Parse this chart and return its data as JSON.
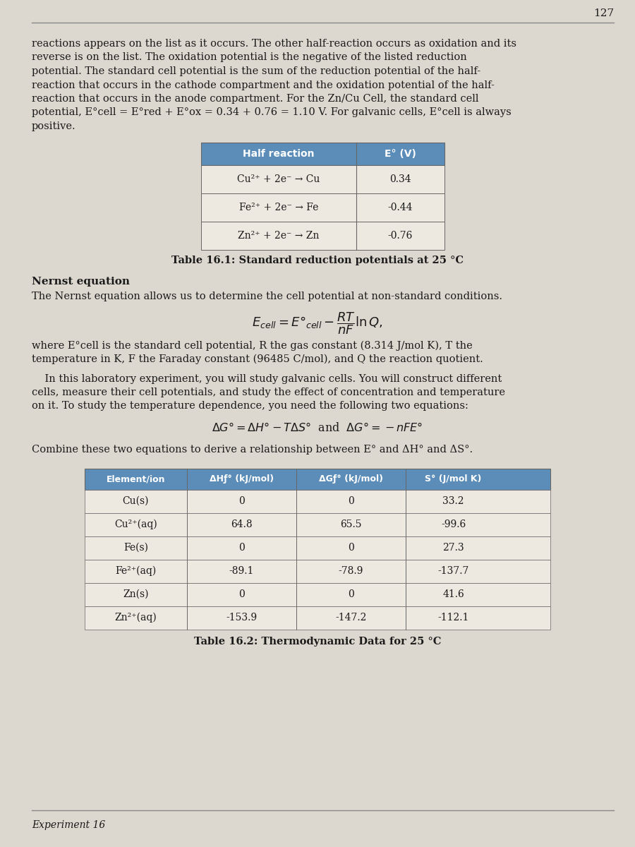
{
  "page_number": "127",
  "page_bg": "#ddd8cf",
  "para1_lines": [
    "reactions appears on the list as it occurs. The other half-reaction occurs as oxidation and its",
    "reverse is on the list. The oxidation potential is the negative of the listed reduction",
    "potential. The standard cell potential is the sum of the reduction potential of the half-",
    "reaction that occurs in the cathode compartment and the oxidation potential of the half-",
    "reaction that occurs in the anode compartment. For the Zn/Cu Cell, the standard cell",
    "potential, E°cell = E°red + E°ox = 0.34 + 0.76 = 1.10 V. For galvanic cells, E°cell is always",
    "positive."
  ],
  "table1_title": "Table 16.1: Standard reduction potentials at 25 °C",
  "table1_headers": [
    "Half reaction",
    "E° (V)"
  ],
  "table1_rows": [
    [
      "Cu²⁺ + 2e⁻ → Cu",
      "0.34"
    ],
    [
      "Fe²⁺ + 2e⁻ → Fe",
      "-0.44"
    ],
    [
      "Zn²⁺ + 2e⁻ → Zn",
      "-0.76"
    ]
  ],
  "nernst_heading": "Nernst equation",
  "nernst_intro": "The Nernst equation allows us to determine the cell potential at non-standard conditions.",
  "nernst_desc_lines": [
    "where E°cell is the standard cell potential, R the gas constant (8.314 J/mol K), T the",
    "temperature in K, F the Faraday constant (96485 C/mol), and Q the reaction quotient."
  ],
  "lab_lines": [
    "    In this laboratory experiment, you will study galvanic cells. You will construct different",
    "cells, measure their cell potentials, and study the effect of concentration and temperature",
    "on it. To study the temperature dependence, you need the following two equations:"
  ],
  "combine_text": "Combine these two equations to derive a relationship between E° and ΔH° and ΔS°.",
  "table2_title": "Table 16.2: Thermodynamic Data for 25 °C",
  "table2_headers": [
    "Element/ion",
    "ΔHƒ° (kJ/mol)",
    "ΔGƒ° (kJ/mol)",
    "S° (J/mol K)"
  ],
  "table2_rows": [
    [
      "Cu(s)",
      "0",
      "0",
      "33.2"
    ],
    [
      "Cu²⁺(aq)",
      "64.8",
      "65.5",
      "-99.6"
    ],
    [
      "Fe(s)",
      "0",
      "0",
      "27.3"
    ],
    [
      "Fe²⁺(aq)",
      "-89.1",
      "-78.9",
      "-137.7"
    ],
    [
      "Zn(s)",
      "0",
      "0",
      "41.6"
    ],
    [
      "Zn²⁺(aq)",
      "-153.9",
      "-147.2",
      "-112.1"
    ]
  ],
  "footer_text": "Experiment 16",
  "text_color": "#1a1a1a",
  "table_header_bg": "#5b8db8",
  "table_border": "#666666",
  "table_data_bg": "#ede8e0",
  "line_color": "#888888"
}
